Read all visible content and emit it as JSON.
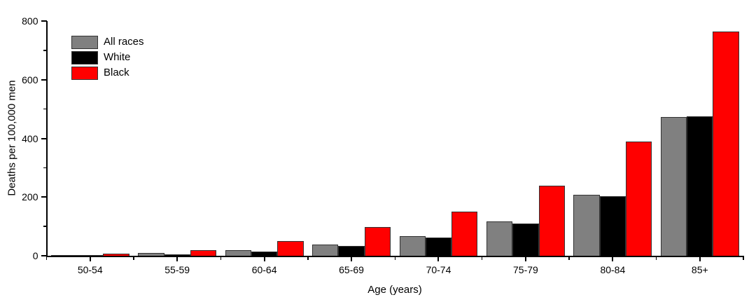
{
  "chart_data": {
    "type": "bar",
    "title": "",
    "xlabel": "Age (years)",
    "ylabel": "Deaths per 100,000 men",
    "categories": [
      "50-54",
      "55-59",
      "60-64",
      "65-69",
      "70-74",
      "75-79",
      "80-84",
      "85+"
    ],
    "series": [
      {
        "name": "All races",
        "color": "#808080",
        "values": [
          2.5,
          9,
          19,
          38,
          68,
          117,
          208,
          473
        ]
      },
      {
        "name": "White",
        "color": "#000000",
        "values": [
          2,
          5,
          14,
          34,
          61,
          110,
          203,
          475
        ]
      },
      {
        "name": "Black",
        "color": "#ff0000",
        "values": [
          8,
          20,
          50,
          97,
          150,
          240,
          390,
          765
        ]
      }
    ],
    "ylim": [
      0,
      800
    ],
    "y_major_ticks": [
      0,
      200,
      400,
      600,
      800
    ],
    "y_minor_step": 100,
    "grid": false,
    "legend_position": "top-left",
    "bar_border_color": "#333333",
    "axis_color": "#000000"
  }
}
